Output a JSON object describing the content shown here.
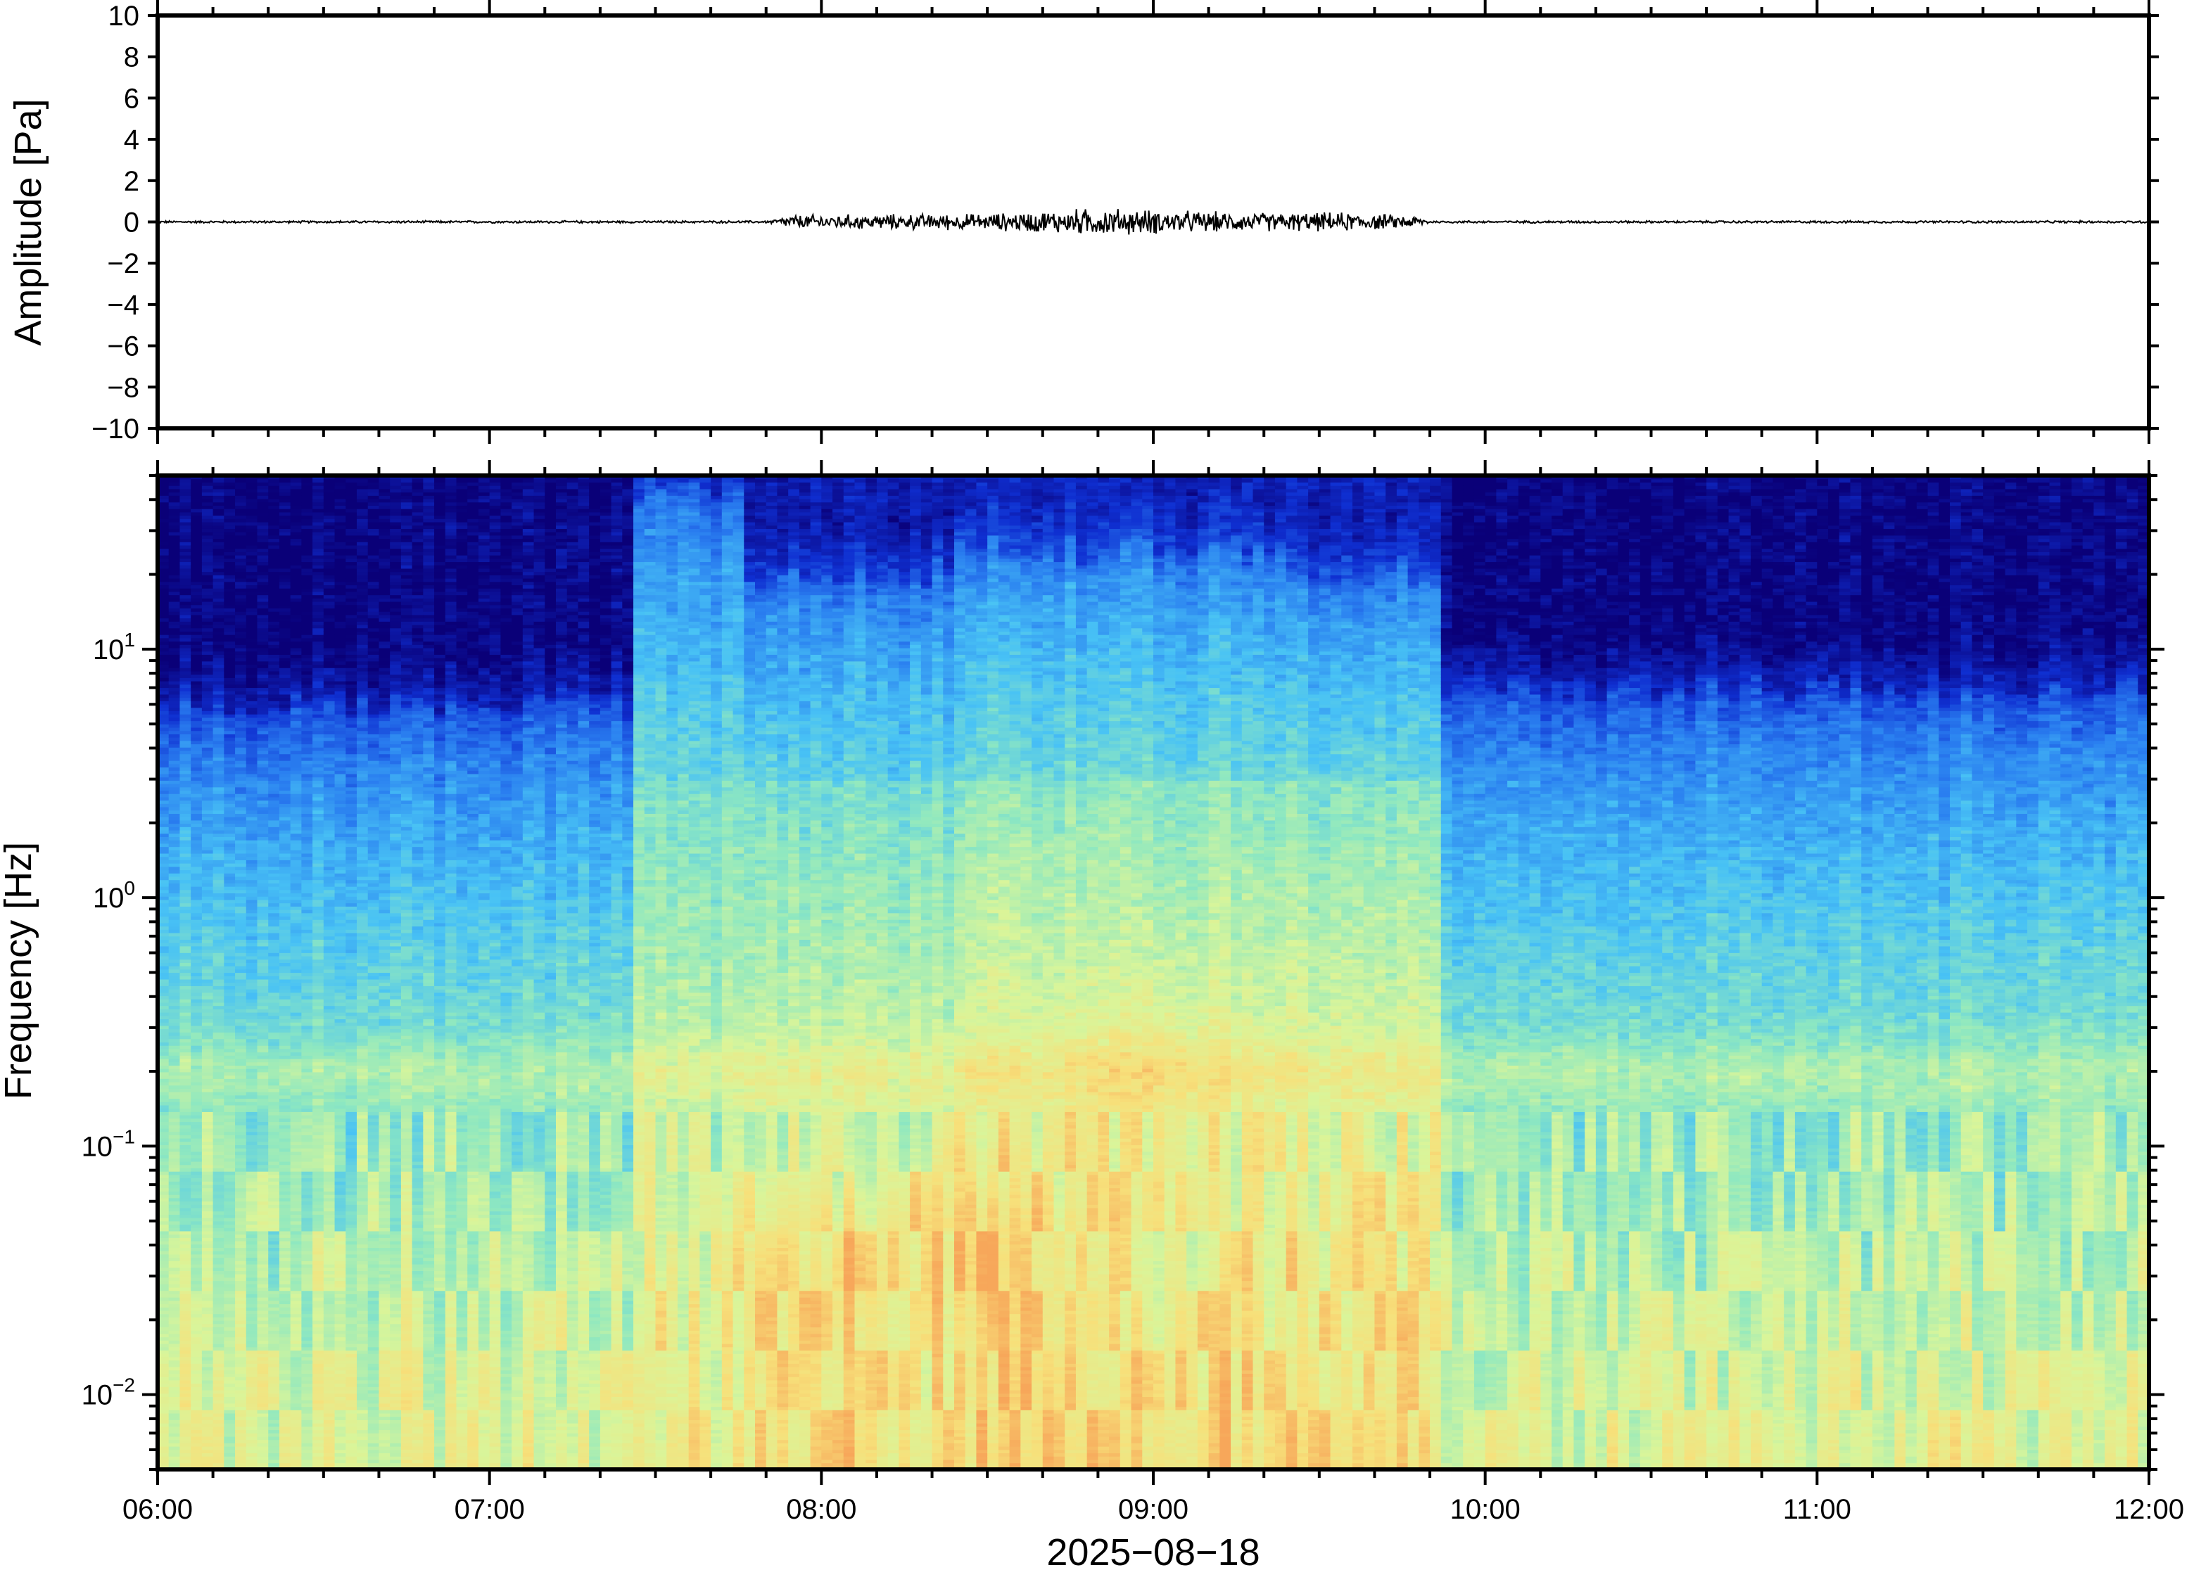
{
  "chart_data": [
    {
      "type": "line",
      "panel": "waveform",
      "ylabel": "Amplitude [Pa]",
      "ylim": [
        -10,
        10
      ],
      "yticks": [
        10,
        8,
        6,
        4,
        2,
        0,
        -2,
        -4,
        -6,
        -8,
        -10
      ],
      "ytick_labels": [
        "10",
        "8",
        "6",
        "4",
        "2",
        "0",
        "−2",
        "−4",
        "−6",
        "−8",
        "−10"
      ],
      "x_range": [
        "06:00",
        "12:00"
      ],
      "grid": false,
      "series": [
        {
          "color": "#000000",
          "envelope": [
            {
              "t": "06:00",
              "amp": 0.05
            },
            {
              "t": "07:50",
              "amp": 0.05
            },
            {
              "t": "07:55",
              "amp": 0.3
            },
            {
              "t": "08:30",
              "amp": 0.35
            },
            {
              "t": "08:50",
              "amp": 0.6
            },
            {
              "t": "09:15",
              "amp": 0.4
            },
            {
              "t": "09:35",
              "amp": 0.4
            },
            {
              "t": "09:48",
              "amp": 0.25
            },
            {
              "t": "09:50",
              "amp": 0.05
            },
            {
              "t": "12:00",
              "amp": 0.05
            }
          ]
        }
      ]
    },
    {
      "type": "heatmap",
      "panel": "spectrogram",
      "ylabel": "Frequency [Hz]",
      "xlabel": "2025−08−18",
      "yscale": "log",
      "ylim": [
        0.005,
        50
      ],
      "yticks": [
        {
          "base": "10",
          "exp": "1",
          "value": 10
        },
        {
          "base": "10",
          "exp": "0",
          "value": 1
        },
        {
          "base": "10",
          "exp": "−1",
          "value": 0.1
        },
        {
          "base": "10",
          "exp": "−2",
          "value": 0.01
        }
      ],
      "xticks": [
        "06:00",
        "07:00",
        "08:00",
        "09:00",
        "10:00",
        "11:00",
        "12:00"
      ],
      "colormap": [
        "#0a0078",
        "#0f2fd1",
        "#2a7ff0",
        "#48c2f5",
        "#8fe8c0",
        "#d9f59a",
        "#f7e07a",
        "#f7a75a"
      ],
      "grid": false,
      "activity": [
        {
          "start": "06:00",
          "end": "07:27",
          "level": "low",
          "upper_freq_hz": 6
        },
        {
          "start": "07:27",
          "end": "07:47",
          "level": "medium",
          "upper_freq_hz": 45
        },
        {
          "start": "07:47",
          "end": "08:25",
          "level": "medium-high",
          "upper_freq_hz": 20
        },
        {
          "start": "08:25",
          "end": "09:25",
          "level": "high",
          "upper_freq_hz": 25
        },
        {
          "start": "09:25",
          "end": "09:52",
          "level": "high",
          "upper_freq_hz": 20
        },
        {
          "start": "09:52",
          "end": "12:00",
          "level": "low",
          "upper_freq_hz": 7
        }
      ],
      "hotspots": [
        {
          "t": "08:00",
          "freq_hz": 0.03,
          "intensity": "orange"
        },
        {
          "t": "08:30",
          "freq_hz": 0.04,
          "intensity": "orange"
        },
        {
          "t": "09:00",
          "freq_hz": 0.2,
          "intensity": "yellow"
        }
      ]
    }
  ]
}
